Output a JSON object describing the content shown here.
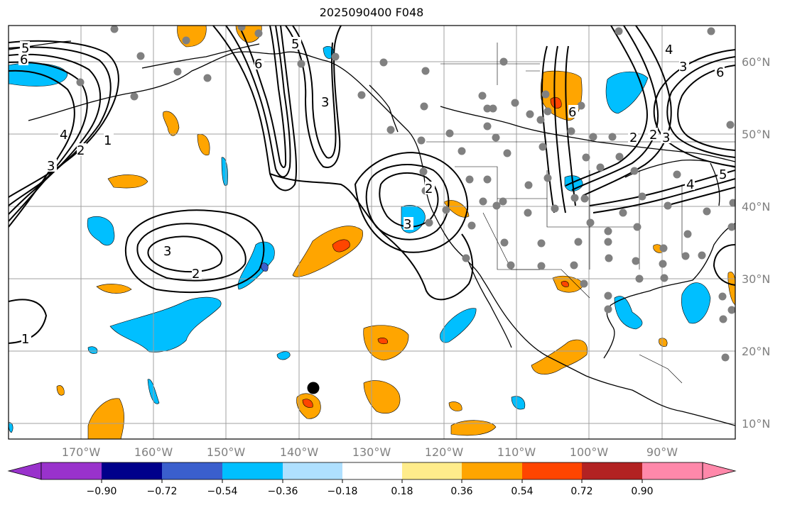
{
  "title": "2025090400 F048",
  "lat_labels": [
    "60°N",
    "50°N",
    "40°N",
    "30°N",
    "20°N",
    "10°N"
  ],
  "lon_labels": [
    "170°W",
    "160°W",
    "150°W",
    "140°W",
    "130°W",
    "120°W",
    "110°W",
    "100°W",
    "90°W"
  ],
  "colorbar": {
    "colors": [
      "#9932cc",
      "#00008b",
      "#3a5fcd",
      "#00bfff",
      "#afe0ff",
      "#ffffff",
      "#ffec8b",
      "#ffa500",
      "#ff4500",
      "#b22222",
      "#ff88aa"
    ],
    "labels": [
      "−0.90",
      "−0.72",
      "−0.54",
      "−0.36",
      "−0.18",
      "0.18",
      "0.36",
      "0.54",
      "0.72",
      "0.90"
    ]
  },
  "contour_labels": [
    "5",
    "6",
    "4",
    "3",
    "2",
    "1",
    "3",
    "2",
    "6",
    "3",
    "5",
    "2",
    "3",
    "1",
    "6",
    "4",
    "3",
    "6",
    "2",
    "2",
    "3",
    "4",
    "5"
  ],
  "colors": {
    "contour": "#000000",
    "grid": "#a0a0a0",
    "station": "#808080",
    "coast": "#000000"
  }
}
